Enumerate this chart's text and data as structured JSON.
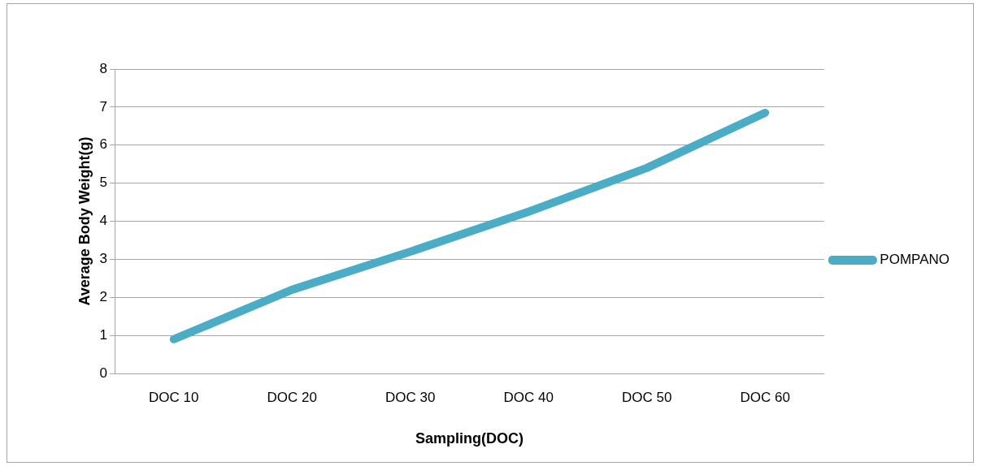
{
  "chart_data": {
    "type": "line",
    "xlabel": "Sampling(DOC)",
    "ylabel": "Average Body Weight(g)",
    "categories": [
      "DOC 10",
      "DOC 20",
      "DOC 30",
      "DOC 40",
      "DOC 50",
      "DOC 60"
    ],
    "series": [
      {
        "name": "POMPANO",
        "color": "#4bacc6",
        "values": [
          0.9,
          2.2,
          3.2,
          4.25,
          5.4,
          6.85
        ]
      }
    ],
    "ylim": [
      0,
      8
    ],
    "yticks": [
      0,
      1,
      2,
      3,
      4,
      5,
      6,
      7,
      8
    ],
    "grid": "y",
    "legend": "right",
    "marker": "none"
  }
}
